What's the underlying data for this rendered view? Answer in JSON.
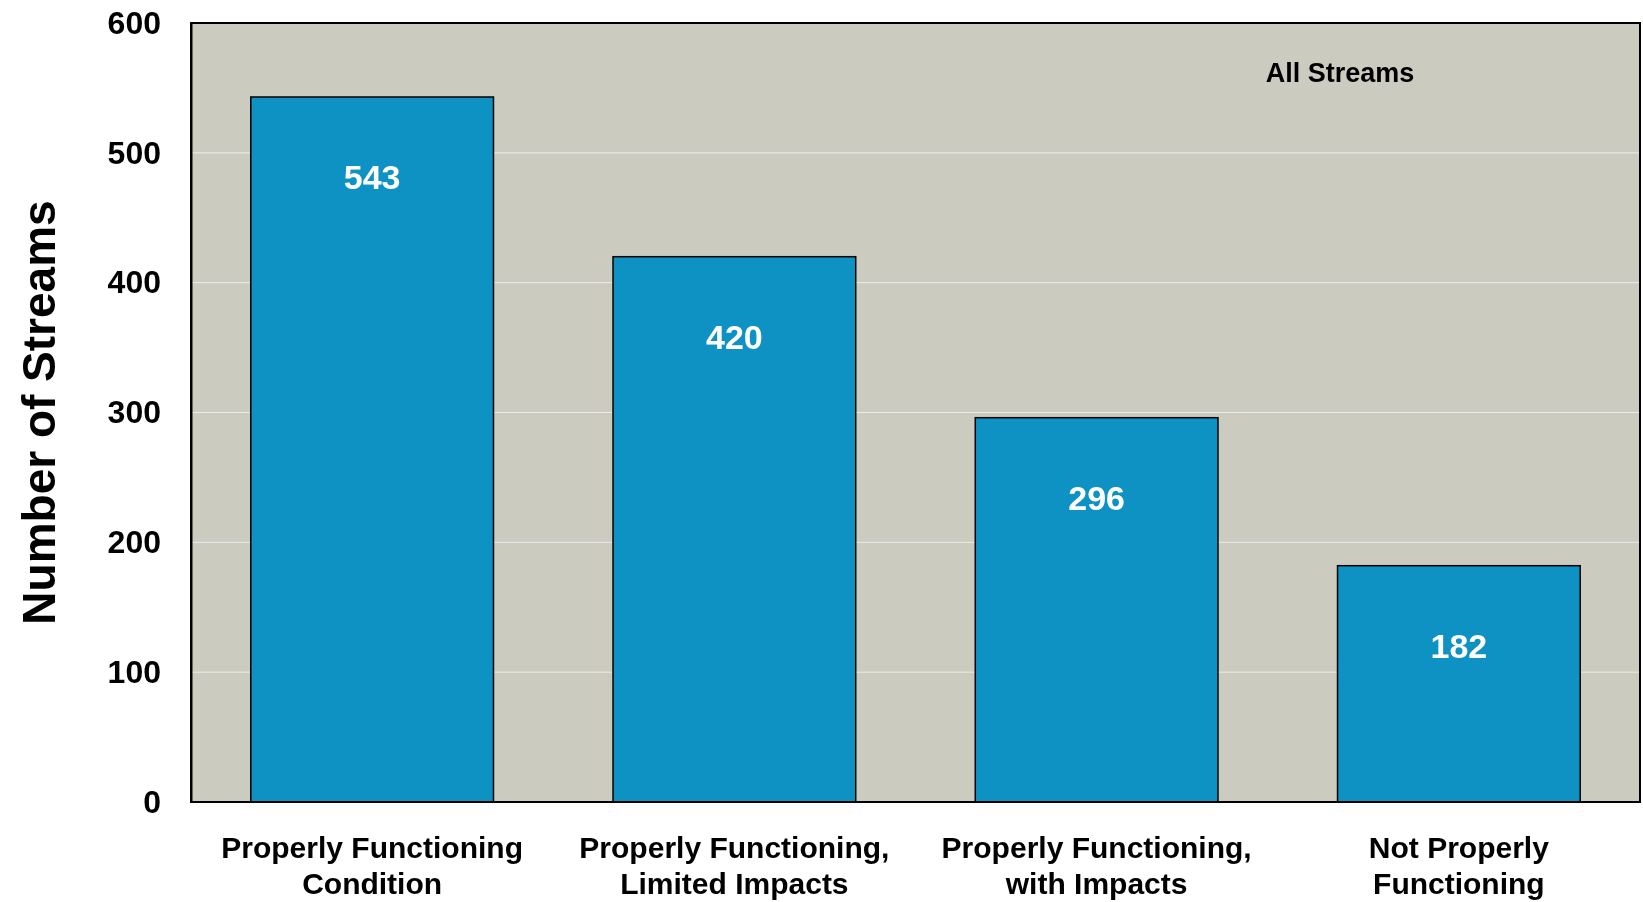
{
  "chart_data": {
    "type": "bar",
    "ylabel": "Number of Streams",
    "categories": [
      "Properly Functioning Condition",
      "Properly Functioning, Limited Impacts",
      "Properly Functioning, with Impacts",
      "Not Properly Functioning"
    ],
    "values": [
      543,
      420,
      296,
      182
    ],
    "color": "#0e91c3",
    "ylim": [
      0,
      600
    ],
    "yticks": [
      0,
      100,
      200,
      300,
      400,
      500,
      600
    ],
    "grid": "y",
    "data_labels": true,
    "annotations": [
      "All Streams"
    ]
  }
}
